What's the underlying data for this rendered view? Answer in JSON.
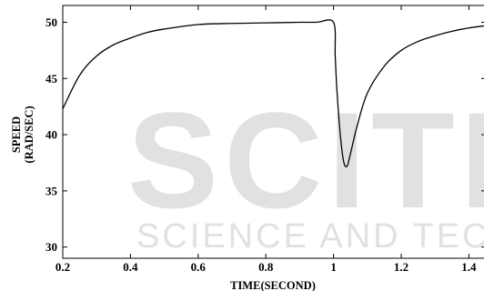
{
  "chart_data": {
    "type": "line",
    "title": "",
    "xlabel": "TIME(SECOND)",
    "ylabel_lines": [
      "SPEED",
      "(RAD/SEC)"
    ],
    "xlim": [
      0.2,
      1.45
    ],
    "ylim": [
      29,
      51.5
    ],
    "x_ticks": [
      0.2,
      0.4,
      0.6,
      0.8,
      1,
      1.2,
      1.4
    ],
    "x_tick_labels": [
      "0.2",
      "0.4",
      "0.6",
      "0.8",
      "1",
      "1.2",
      "1.4"
    ],
    "y_ticks": [
      30,
      35,
      40,
      45,
      50
    ],
    "y_tick_labels": [
      "30",
      "35",
      "40",
      "45",
      "50"
    ],
    "grid": false,
    "series": [
      {
        "line_color": "#000000",
        "x": [
          0.2,
          0.25,
          0.3,
          0.35,
          0.4,
          0.45,
          0.5,
          0.6,
          0.7,
          0.8,
          0.9,
          0.95,
          1.0,
          1.005,
          1.01,
          1.02,
          1.03,
          1.04,
          1.05,
          1.07,
          1.1,
          1.15,
          1.2,
          1.25,
          1.3,
          1.35,
          1.4,
          1.45
        ],
        "y": [
          42.3,
          45.3,
          47.0,
          48.0,
          48.6,
          49.1,
          49.4,
          49.8,
          49.9,
          49.95,
          50.0,
          50.0,
          50.0,
          47.0,
          44.0,
          40.0,
          37.6,
          37.2,
          38.3,
          40.8,
          43.7,
          46.1,
          47.5,
          48.3,
          48.8,
          49.2,
          49.5,
          49.7
        ]
      }
    ]
  },
  "watermark": {
    "big_text": "SCITE",
    "small_text": "SCIENCE AND TECH"
  }
}
